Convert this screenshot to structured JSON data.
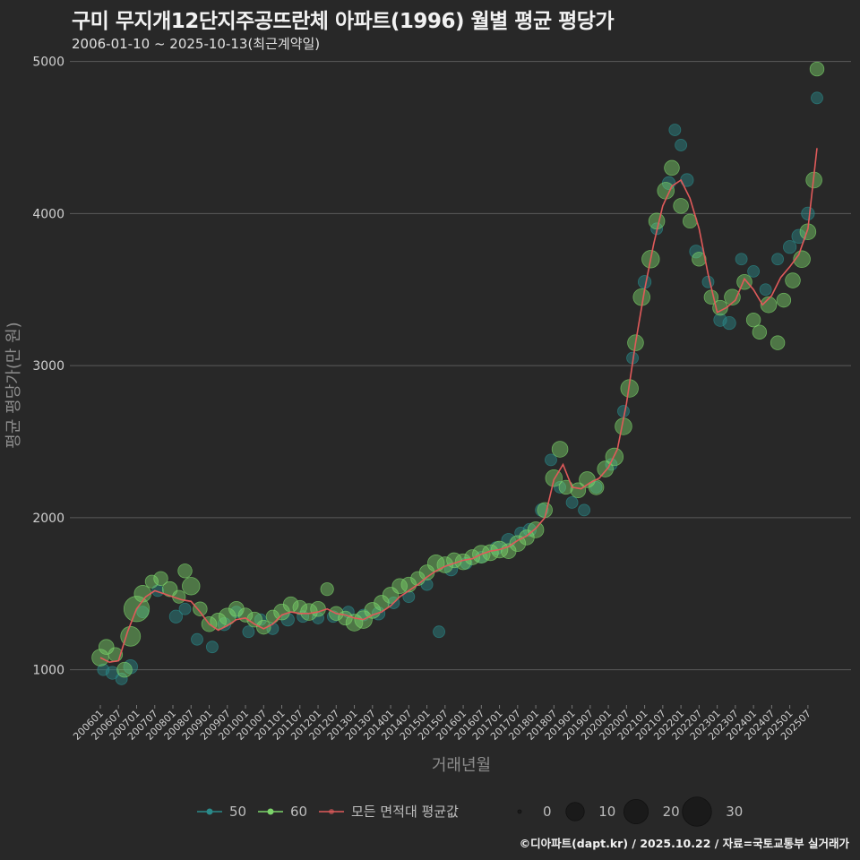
{
  "header": {
    "title": "구미 무지개12단지주공뜨란체 아파트(1996) 월별 평균 평당가",
    "subtitle": "2006-01-10 ~ 2025-10-13(최근계약일)"
  },
  "footer": "©디아파트(dapt.kr) / 2025.10.22 / 자료=국토교통부 실거래가",
  "colors": {
    "s50": "#2a8a8a",
    "s60": "#7cd46a",
    "avg": "#e05a5a",
    "grid": "#5a5a5a",
    "bg": "#282828"
  },
  "chart_data": {
    "type": "scatter",
    "title": "구미 무지개12단지주공뜨란체 아파트(1996) 월별 평균 평당가",
    "xlabel": "거래년월",
    "ylabel": "평균 평당가(만 원)",
    "ylim": [
      780,
      5080
    ],
    "yticks": [
      1000,
      2000,
      3000,
      4000,
      5000
    ],
    "xlim": [
      "2006-01",
      "2025-10"
    ],
    "xticks": [
      "200601",
      "200607",
      "200701",
      "200707",
      "200801",
      "200807",
      "200901",
      "200907",
      "201001",
      "201007",
      "201101",
      "201107",
      "201201",
      "201207",
      "201301",
      "201307",
      "201401",
      "201407",
      "201501",
      "201507",
      "201601",
      "201607",
      "201701",
      "201707",
      "201801",
      "201807",
      "201901",
      "201907",
      "202001",
      "202007",
      "202101",
      "202107",
      "202201",
      "202207",
      "202301",
      "202307",
      "202401",
      "202407",
      "202501",
      "202507"
    ],
    "average_line": {
      "name": "모든 면적대 평균값",
      "points": [
        [
          "2006-01",
          1080
        ],
        [
          "2006-04",
          1050
        ],
        [
          "2006-07",
          1060
        ],
        [
          "2006-10",
          1250
        ],
        [
          "2007-01",
          1400
        ],
        [
          "2007-04",
          1480
        ],
        [
          "2007-07",
          1520
        ],
        [
          "2007-10",
          1500
        ],
        [
          "2008-01",
          1480
        ],
        [
          "2008-04",
          1460
        ],
        [
          "2008-07",
          1450
        ],
        [
          "2008-10",
          1380
        ],
        [
          "2009-01",
          1300
        ],
        [
          "2009-04",
          1260
        ],
        [
          "2009-07",
          1290
        ],
        [
          "2009-10",
          1330
        ],
        [
          "2010-01",
          1340
        ],
        [
          "2010-04",
          1300
        ],
        [
          "2010-07",
          1270
        ],
        [
          "2010-10",
          1300
        ],
        [
          "2011-01",
          1360
        ],
        [
          "2011-04",
          1380
        ],
        [
          "2011-07",
          1370
        ],
        [
          "2011-10",
          1370
        ],
        [
          "2012-01",
          1380
        ],
        [
          "2012-04",
          1400
        ],
        [
          "2012-07",
          1370
        ],
        [
          "2012-10",
          1360
        ],
        [
          "2013-01",
          1340
        ],
        [
          "2013-04",
          1330
        ],
        [
          "2013-07",
          1360
        ],
        [
          "2013-10",
          1380
        ],
        [
          "2014-01",
          1420
        ],
        [
          "2014-04",
          1480
        ],
        [
          "2014-07",
          1520
        ],
        [
          "2014-10",
          1560
        ],
        [
          "2015-01",
          1610
        ],
        [
          "2015-04",
          1650
        ],
        [
          "2015-07",
          1680
        ],
        [
          "2015-10",
          1700
        ],
        [
          "2016-01",
          1720
        ],
        [
          "2016-04",
          1730
        ],
        [
          "2016-07",
          1760
        ],
        [
          "2016-10",
          1780
        ],
        [
          "2017-01",
          1790
        ],
        [
          "2017-04",
          1810
        ],
        [
          "2017-07",
          1850
        ],
        [
          "2017-10",
          1880
        ],
        [
          "2018-01",
          1930
        ],
        [
          "2018-04",
          2000
        ],
        [
          "2018-07",
          2250
        ],
        [
          "2018-10",
          2350
        ],
        [
          "2019-01",
          2200
        ],
        [
          "2019-04",
          2190
        ],
        [
          "2019-07",
          2230
        ],
        [
          "2019-10",
          2260
        ],
        [
          "2020-01",
          2330
        ],
        [
          "2020-04",
          2450
        ],
        [
          "2020-07",
          2750
        ],
        [
          "2020-10",
          3150
        ],
        [
          "2021-01",
          3500
        ],
        [
          "2021-04",
          3800
        ],
        [
          "2021-07",
          4050
        ],
        [
          "2021-10",
          4180
        ],
        [
          "2022-01",
          4220
        ],
        [
          "2022-04",
          4100
        ],
        [
          "2022-07",
          3900
        ],
        [
          "2022-10",
          3600
        ],
        [
          "2023-01",
          3350
        ],
        [
          "2023-04",
          3380
        ],
        [
          "2023-07",
          3430
        ],
        [
          "2023-10",
          3570
        ],
        [
          "2024-01",
          3500
        ],
        [
          "2024-04",
          3400
        ],
        [
          "2024-07",
          3460
        ],
        [
          "2024-10",
          3580
        ],
        [
          "2025-01",
          3650
        ],
        [
          "2025-04",
          3730
        ],
        [
          "2025-07",
          3900
        ],
        [
          "2025-10",
          4430
        ]
      ]
    },
    "series": [
      {
        "name": "50",
        "points": [
          [
            "2006-02",
            1000,
            3
          ],
          [
            "2006-05",
            980,
            4
          ],
          [
            "2006-08",
            940,
            3
          ],
          [
            "2006-11",
            1020,
            5
          ],
          [
            "2007-03",
            1380,
            3
          ],
          [
            "2007-08",
            1520,
            3
          ],
          [
            "2008-02",
            1350,
            4
          ],
          [
            "2008-05",
            1400,
            3
          ],
          [
            "2008-09",
            1200,
            3
          ],
          [
            "2009-02",
            1150,
            3
          ],
          [
            "2009-06",
            1300,
            4
          ],
          [
            "2009-10",
            1380,
            3
          ],
          [
            "2010-02",
            1250,
            3
          ],
          [
            "2010-06",
            1330,
            3
          ],
          [
            "2010-10",
            1270,
            3
          ],
          [
            "2011-03",
            1330,
            4
          ],
          [
            "2011-08",
            1350,
            3
          ],
          [
            "2012-01",
            1340,
            3
          ],
          [
            "2012-06",
            1350,
            3
          ],
          [
            "2012-11",
            1380,
            3
          ],
          [
            "2013-04",
            1360,
            3
          ],
          [
            "2013-09",
            1370,
            4
          ],
          [
            "2014-02",
            1440,
            3
          ],
          [
            "2014-07",
            1480,
            3
          ],
          [
            "2015-01",
            1560,
            3
          ],
          [
            "2015-05",
            1250,
            3
          ],
          [
            "2015-09",
            1660,
            4
          ],
          [
            "2016-02",
            1700,
            3
          ],
          [
            "2016-07",
            1740,
            3
          ],
          [
            "2016-12",
            1800,
            4
          ],
          [
            "2017-04",
            1850,
            5
          ],
          [
            "2017-08",
            1900,
            3
          ],
          [
            "2017-11",
            1920,
            4
          ],
          [
            "2018-03",
            2050,
            4
          ],
          [
            "2018-06",
            2380,
            3
          ],
          [
            "2018-09",
            2200,
            3
          ],
          [
            "2019-01",
            2100,
            3
          ],
          [
            "2019-05",
            2050,
            3
          ],
          [
            "2019-09",
            2200,
            3
          ],
          [
            "2020-02",
            2350,
            3
          ],
          [
            "2020-06",
            2700,
            3
          ],
          [
            "2020-09",
            3050,
            3
          ],
          [
            "2021-01",
            3550,
            4
          ],
          [
            "2021-05",
            3900,
            3
          ],
          [
            "2021-09",
            4200,
            4
          ],
          [
            "2021-11",
            4550,
            3
          ],
          [
            "2022-01",
            4450,
            3
          ],
          [
            "2022-03",
            4220,
            4
          ],
          [
            "2022-06",
            3750,
            4
          ],
          [
            "2022-10",
            3550,
            3
          ],
          [
            "2023-02",
            3300,
            4
          ],
          [
            "2023-05",
            3280,
            4
          ],
          [
            "2023-09",
            3700,
            3
          ],
          [
            "2024-01",
            3620,
            3
          ],
          [
            "2024-05",
            3500,
            3
          ],
          [
            "2024-09",
            3700,
            3
          ],
          [
            "2025-01",
            3780,
            4
          ],
          [
            "2025-04",
            3850,
            5
          ],
          [
            "2025-07",
            4000,
            4
          ],
          [
            "2025-10",
            4760,
            3
          ]
        ]
      },
      {
        "name": "60",
        "points": [
          [
            "2006-01",
            1080,
            8
          ],
          [
            "2006-03",
            1150,
            6
          ],
          [
            "2006-06",
            1100,
            5
          ],
          [
            "2006-09",
            1000,
            6
          ],
          [
            "2006-11",
            1220,
            12
          ],
          [
            "2007-01",
            1400,
            22
          ],
          [
            "2007-03",
            1500,
            8
          ],
          [
            "2007-06",
            1580,
            4
          ],
          [
            "2007-09",
            1600,
            5
          ],
          [
            "2007-12",
            1530,
            6
          ],
          [
            "2008-03",
            1480,
            4
          ],
          [
            "2008-05",
            1650,
            5
          ],
          [
            "2008-07",
            1550,
            9
          ],
          [
            "2008-10",
            1400,
            5
          ],
          [
            "2009-01",
            1300,
            6
          ],
          [
            "2009-04",
            1320,
            7
          ],
          [
            "2009-07",
            1350,
            8
          ],
          [
            "2009-10",
            1400,
            6
          ],
          [
            "2010-01",
            1360,
            5
          ],
          [
            "2010-04",
            1330,
            6
          ],
          [
            "2010-07",
            1280,
            5
          ],
          [
            "2010-10",
            1350,
            4
          ],
          [
            "2011-01",
            1380,
            7
          ],
          [
            "2011-04",
            1430,
            6
          ],
          [
            "2011-07",
            1410,
            5
          ],
          [
            "2011-10",
            1380,
            8
          ],
          [
            "2012-01",
            1400,
            6
          ],
          [
            "2012-04",
            1530,
            4
          ],
          [
            "2012-07",
            1370,
            5
          ],
          [
            "2012-10",
            1340,
            5
          ],
          [
            "2013-01",
            1310,
            8
          ],
          [
            "2013-04",
            1330,
            9
          ],
          [
            "2013-07",
            1390,
            7
          ],
          [
            "2013-10",
            1440,
            6
          ],
          [
            "2014-01",
            1490,
            7
          ],
          [
            "2014-04",
            1550,
            6
          ],
          [
            "2014-07",
            1560,
            6
          ],
          [
            "2014-10",
            1600,
            5
          ],
          [
            "2015-01",
            1640,
            6
          ],
          [
            "2015-04",
            1700,
            8
          ],
          [
            "2015-07",
            1690,
            7
          ],
          [
            "2015-10",
            1720,
            6
          ],
          [
            "2016-01",
            1710,
            7
          ],
          [
            "2016-04",
            1740,
            6
          ],
          [
            "2016-07",
            1760,
            9
          ],
          [
            "2016-10",
            1770,
            7
          ],
          [
            "2017-01",
            1790,
            8
          ],
          [
            "2017-04",
            1780,
            6
          ],
          [
            "2017-07",
            1830,
            7
          ],
          [
            "2017-10",
            1870,
            6
          ],
          [
            "2018-01",
            1920,
            7
          ],
          [
            "2018-04",
            2050,
            6
          ],
          [
            "2018-07",
            2260,
            8
          ],
          [
            "2018-09",
            2450,
            7
          ],
          [
            "2018-11",
            2200,
            5
          ],
          [
            "2019-03",
            2180,
            6
          ],
          [
            "2019-06",
            2250,
            7
          ],
          [
            "2019-09",
            2200,
            6
          ],
          [
            "2019-12",
            2320,
            7
          ],
          [
            "2020-03",
            2400,
            9
          ],
          [
            "2020-06",
            2600,
            8
          ],
          [
            "2020-08",
            2850,
            9
          ],
          [
            "2020-10",
            3150,
            7
          ],
          [
            "2020-12",
            3450,
            8
          ],
          [
            "2021-03",
            3700,
            9
          ],
          [
            "2021-05",
            3950,
            7
          ],
          [
            "2021-08",
            4150,
            8
          ],
          [
            "2021-10",
            4300,
            6
          ],
          [
            "2022-01",
            4050,
            6
          ],
          [
            "2022-04",
            3950,
            5
          ],
          [
            "2022-07",
            3700,
            5
          ],
          [
            "2022-11",
            3450,
            5
          ],
          [
            "2023-02",
            3380,
            6
          ],
          [
            "2023-06",
            3450,
            7
          ],
          [
            "2023-10",
            3550,
            6
          ],
          [
            "2024-01",
            3300,
            5
          ],
          [
            "2024-03",
            3220,
            5
          ],
          [
            "2024-06",
            3400,
            7
          ],
          [
            "2024-09",
            3150,
            5
          ],
          [
            "2024-11",
            3430,
            5
          ],
          [
            "2025-02",
            3560,
            6
          ],
          [
            "2025-05",
            3700,
            8
          ],
          [
            "2025-07",
            3880,
            7
          ],
          [
            "2025-09",
            4220,
            7
          ],
          [
            "2025-10",
            4950,
            5
          ]
        ]
      }
    ],
    "legend": {
      "series_labels": [
        "50",
        "60",
        "모든 면적대 평균값"
      ],
      "size_labels": [
        "0",
        "10",
        "20",
        "30"
      ],
      "placement": "bottom"
    }
  }
}
